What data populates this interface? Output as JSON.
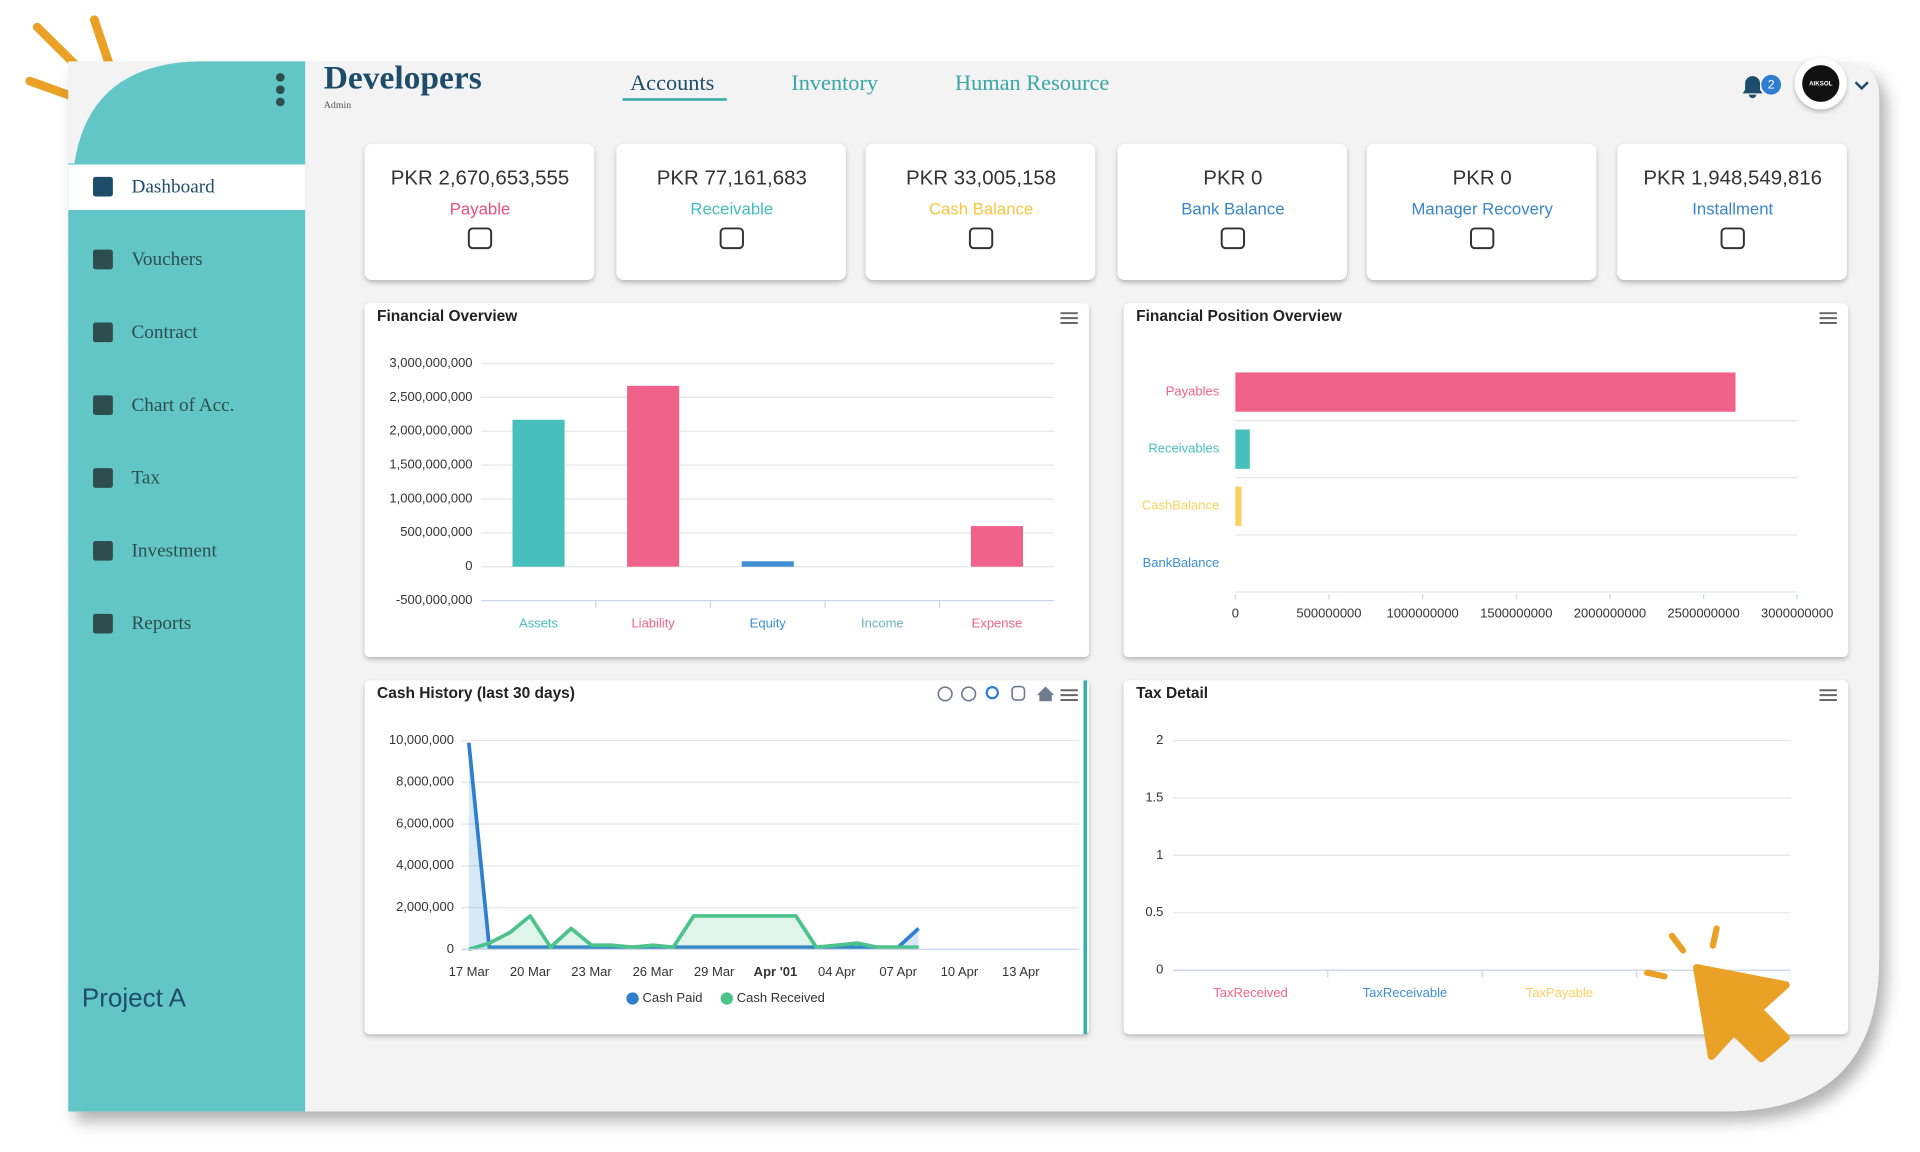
{
  "brand": {
    "title": "Developers",
    "subtitle": "Admin"
  },
  "nav": [
    "Accounts",
    "Inventory",
    "Human Resource"
  ],
  "notification_count": 2,
  "avatar": "AIKSOL",
  "sidebar": [
    "Dashboard",
    "Vouchers",
    "Contract",
    "Chart of Acc.",
    "Tax",
    "Investment",
    "Reports"
  ],
  "project": "Project A",
  "cards": [
    {
      "value": "PKR 2,670,653,555",
      "label": "Payable",
      "color": "#ec4f79"
    },
    {
      "value": "PKR 77,161,683",
      "label": "Receivable",
      "color": "#45bcbc"
    },
    {
      "value": "PKR 33,005,158",
      "label": "Cash Balance",
      "color": "#f7c640"
    },
    {
      "value": "PKR 0",
      "label": "Bank Balance",
      "color": "#3a86c8"
    },
    {
      "value": "PKR 0",
      "label": "Manager Recovery",
      "color": "#3a86c8"
    },
    {
      "value": "PKR 1,948,549,816",
      "label": "Installment",
      "color": "#3a86c8"
    }
  ],
  "charts": [
    {
      "type": "bar",
      "title": "Financial Overview",
      "categories": [
        "Assets",
        "Liability",
        "Equity",
        "Income",
        "Expense"
      ],
      "values": [
        2170000000,
        2670653555,
        80000000,
        0,
        600000000
      ],
      "colors": [
        "#46bfbd",
        "#f0628a",
        "#3d8fd6",
        "#6bb8b8",
        "#f0628a"
      ],
      "ylim": [
        -500000000,
        3000000000
      ],
      "yticks": [
        {
          "value": -500000000,
          "label": "-500,000,000"
        },
        0,
        {
          "value": 500000000,
          "label": "500,000,000"
        },
        {
          "value": 1000000000,
          "label": "1,000,000,000"
        },
        {
          "value": 1500000000,
          "label": "1,500,000,000"
        },
        {
          "value": 2000000000,
          "label": "2,000,000,000"
        },
        {
          "value": 2500000000,
          "label": "2,500,000,000"
        },
        {
          "value": 3000000000,
          "label": "3,000,000,000"
        }
      ],
      "grid": true
    },
    {
      "type": "hbar",
      "title": "Financial Position Overview",
      "categories": [
        "Payables",
        "Receivables",
        "CashBalance",
        "BankBalance"
      ],
      "values": [
        2670653555,
        77161683,
        33005158,
        0
      ],
      "colors": [
        "#f0628a",
        "#46bfbd",
        "#fcd060",
        "#3d8fd6"
      ],
      "xlim": [
        0,
        3000000000
      ],
      "xticks": [
        0,
        500000000,
        1000000000,
        1500000000,
        2000000000,
        2500000000,
        3000000000
      ]
    },
    {
      "type": "line",
      "title": "Cash History (last 30 days)",
      "x": [
        "17 Mar",
        null,
        null,
        "20 Mar",
        null,
        null,
        "23 Mar",
        null,
        null,
        "26 Mar",
        null,
        null,
        "29 Mar",
        null,
        null,
        "Apr '01",
        null,
        null,
        "04 Apr",
        null,
        null,
        "07 Apr",
        null,
        null,
        "10 Apr",
        null,
        null,
        "13 Apr"
      ],
      "series": [
        {
          "name": "Cash Paid",
          "color": "#2f7fd0",
          "values": [
            9900000,
            100000,
            100000,
            100000,
            100000,
            100000,
            100000,
            100000,
            100000,
            100000,
            100000,
            100000,
            100000,
            100000,
            100000,
            100000,
            100000,
            100000,
            100000,
            100000,
            100000,
            100000,
            1000000,
            null,
            null,
            null,
            null,
            null
          ]
        },
        {
          "name": "Cash Received",
          "color": "#4cc38a",
          "values": [
            0,
            300000,
            800000,
            1600000,
            100000,
            1000000,
            200000,
            200000,
            100000,
            200000,
            100000,
            1600000,
            1600000,
            1600000,
            1600000,
            1600000,
            1600000,
            100000,
            200000,
            300000,
            100000,
            100000,
            100000,
            null,
            null,
            null,
            null,
            null
          ]
        }
      ],
      "ylim": [
        0,
        10000000
      ],
      "yticks": [
        0,
        {
          "value": 2000000,
          "label": "2,000,000"
        },
        {
          "value": 4000000,
          "label": "4,000,000"
        },
        {
          "value": 6000000,
          "label": "6,000,000"
        },
        {
          "value": 8000000,
          "label": "8,000,000"
        },
        {
          "value": 10000000,
          "label": "10,000,000"
        }
      ],
      "grid": true
    },
    {
      "type": "bar",
      "title": "Tax Detail",
      "categories": [
        "TaxReceived",
        "TaxReceivable",
        "TaxPayable",
        null
      ],
      "values": [
        0,
        0,
        0,
        0
      ],
      "colors": [
        "#f0628a",
        "#3d8fd6",
        "#fcd060",
        "#46bfbd"
      ],
      "ylim": [
        0,
        2
      ],
      "yticks": [
        0,
        0.5,
        1,
        1.5,
        2
      ],
      "grid": true
    }
  ]
}
